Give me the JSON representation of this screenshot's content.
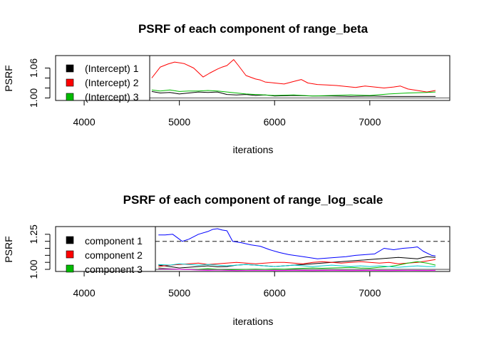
{
  "chart_data": [
    {
      "type": "line",
      "title": "PSRF of each component of range_beta",
      "xlabel": "iterations",
      "ylabel": "PSRF",
      "xlim": [
        3700,
        7840
      ],
      "ylim": [
        0.995,
        1.085
      ],
      "xticks": [
        4000,
        5000,
        6000,
        7000
      ],
      "yticks": [
        1.0,
        1.02,
        1.04,
        1.06
      ],
      "ytick_labels": [
        "1.00",
        "",
        "",
        "1.06"
      ],
      "hline": {
        "y": 1.0,
        "style": "solid",
        "color": "#555555"
      },
      "legend": {
        "position": "top-left",
        "entries": [
          "(Intercept) 1",
          "(Intercept) 2",
          "(Intercept) 3"
        ]
      },
      "series": [
        {
          "name": "(Intercept) 1",
          "color": "#000000",
          "x": [
            4710,
            4800,
            4900,
            5000,
            5100,
            5200,
            5300,
            5400,
            5500,
            5600,
            5700,
            5800,
            5900,
            6000,
            6200,
            6400,
            6600,
            6800,
            7000,
            7200,
            7400,
            7690
          ],
          "y": [
            1.013,
            1.01,
            1.011,
            1.008,
            1.01,
            1.012,
            1.011,
            1.012,
            1.007,
            1.006,
            1.007,
            1.005,
            1.006,
            1.004,
            1.005,
            1.004,
            1.004,
            1.003,
            1.004,
            1.003,
            1.003,
            1.003
          ]
        },
        {
          "name": "(Intercept) 2",
          "color": "#ff0000",
          "x": [
            4710,
            4800,
            4880,
            4950,
            5050,
            5150,
            5250,
            5320,
            5400,
            5450,
            5500,
            5570,
            5620,
            5700,
            5800,
            5850,
            5900,
            6000,
            6100,
            6200,
            6280,
            6350,
            6450,
            6550,
            6650,
            6750,
            6850,
            6950,
            7050,
            7150,
            7250,
            7320,
            7400,
            7500,
            7600,
            7690
          ],
          "y": [
            1.04,
            1.062,
            1.068,
            1.072,
            1.069,
            1.06,
            1.042,
            1.05,
            1.058,
            1.062,
            1.065,
            1.077,
            1.065,
            1.045,
            1.038,
            1.036,
            1.032,
            1.03,
            1.028,
            1.033,
            1.037,
            1.03,
            1.027,
            1.026,
            1.025,
            1.023,
            1.021,
            1.024,
            1.022,
            1.02,
            1.022,
            1.024,
            1.018,
            1.015,
            1.012,
            1.015
          ]
        },
        {
          "name": "(Intercept) 3",
          "color": "#00bb00",
          "x": [
            4710,
            4800,
            4900,
            5000,
            5100,
            5200,
            5300,
            5400,
            5500,
            5600,
            5700,
            5800,
            5900,
            6000,
            6200,
            6400,
            6600,
            6800,
            7000,
            7200,
            7400,
            7600,
            7690
          ],
          "y": [
            1.016,
            1.014,
            1.016,
            1.013,
            1.014,
            1.014,
            1.015,
            1.014,
            1.012,
            1.01,
            1.008,
            1.007,
            1.006,
            1.005,
            1.006,
            1.004,
            1.005,
            1.006,
            1.005,
            1.008,
            1.01,
            1.011,
            1.012
          ]
        }
      ]
    },
    {
      "type": "line",
      "title": "PSRF of each component of range_log_scale",
      "xlabel": "iterations",
      "ylabel": "PSRF",
      "xlim": [
        3700,
        7840
      ],
      "ylim": [
        0.985,
        1.305
      ],
      "xticks": [
        4000,
        5000,
        6000,
        7000
      ],
      "yticks": [
        1.0,
        1.05,
        1.1,
        1.15,
        1.2,
        1.25
      ],
      "ytick_labels": [
        "1.00",
        "",
        "",
        "",
        "",
        "1.25"
      ],
      "hline": {
        "y": 1.2,
        "style": "dashed",
        "color": "#555555"
      },
      "hline_base": {
        "y": 1.0,
        "style": "solid",
        "color": "#555555"
      },
      "legend": {
        "position": "top-left",
        "entries": [
          "component 1",
          "component 2",
          "component 3"
        ]
      },
      "series": [
        {
          "name": "component 1",
          "color": "#000000",
          "x": [
            4780,
            4900,
            5000,
            5100,
            5200,
            5300,
            5400,
            5500,
            5600,
            5700,
            5800,
            5900,
            6000,
            6100,
            6200,
            6300,
            6400,
            6500,
            6600,
            6700,
            6800,
            6900,
            7000,
            7100,
            7200,
            7300,
            7400,
            7500,
            7600,
            7690
          ],
          "y": [
            1.03,
            1.02,
            1.01,
            1.015,
            1.02,
            1.025,
            1.018,
            1.02,
            1.03,
            1.035,
            1.03,
            1.025,
            1.02,
            1.025,
            1.03,
            1.035,
            1.04,
            1.045,
            1.05,
            1.055,
            1.06,
            1.065,
            1.07,
            1.075,
            1.08,
            1.085,
            1.08,
            1.075,
            1.09,
            1.085
          ]
        },
        {
          "name": "component 2",
          "color": "#ff0000",
          "x": [
            4780,
            4900,
            5000,
            5100,
            5200,
            5300,
            5400,
            5500,
            5600,
            5700,
            5800,
            5900,
            6000,
            6100,
            6200,
            6300,
            6400,
            6500,
            6600,
            6700,
            6800,
            6900,
            7000,
            7100,
            7200,
            7300,
            7400,
            7500,
            7600,
            7690
          ],
          "y": [
            1.02,
            1.03,
            1.035,
            1.04,
            1.045,
            1.035,
            1.04,
            1.045,
            1.05,
            1.045,
            1.04,
            1.045,
            1.05,
            1.05,
            1.045,
            1.04,
            1.05,
            1.055,
            1.05,
            1.045,
            1.05,
            1.055,
            1.05,
            1.045,
            1.05,
            1.04,
            1.045,
            1.05,
            1.06,
            1.07
          ]
        },
        {
          "name": "component 3",
          "color": "#00bb00",
          "x": [
            4780,
            4900,
            5000,
            5100,
            5200,
            5300,
            5400,
            5500,
            5600,
            5700,
            5800,
            5900,
            6000,
            6100,
            6200,
            6300,
            6400,
            6500,
            6600,
            6700,
            6800,
            6900,
            7000,
            7100,
            7200,
            7300,
            7400,
            7500,
            7600,
            7690
          ],
          "y": [
            1.01,
            1.005,
            1.0,
            0.998,
            1.0,
            1.005,
            1.0,
            0.997,
            0.998,
            1.0,
            1.002,
            1.0,
            1.003,
            1.002,
            1.005,
            1.008,
            1.01,
            1.008,
            1.01,
            1.012,
            1.015,
            1.01,
            1.008,
            1.015,
            1.02,
            1.03,
            1.045,
            1.055,
            1.045,
            1.03
          ]
        },
        {
          "color": "#0000ff",
          "x": [
            4780,
            4850,
            4930,
            5000,
            5030,
            5100,
            5200,
            5300,
            5350,
            5400,
            5450,
            5500,
            5560,
            5650,
            5750,
            5850,
            5950,
            6050,
            6150,
            6250,
            6350,
            6450,
            6550,
            6650,
            6750,
            6850,
            6950,
            7050,
            7150,
            7250,
            7350,
            7450,
            7500,
            7560,
            7650,
            7690
          ],
          "y": [
            1.245,
            1.245,
            1.25,
            1.215,
            1.2,
            1.215,
            1.25,
            1.27,
            1.285,
            1.29,
            1.28,
            1.275,
            1.2,
            1.19,
            1.175,
            1.165,
            1.14,
            1.12,
            1.105,
            1.095,
            1.085,
            1.075,
            1.08,
            1.085,
            1.09,
            1.1,
            1.105,
            1.11,
            1.15,
            1.14,
            1.15,
            1.155,
            1.16,
            1.13,
            1.1,
            1.095
          ]
        },
        {
          "color": "#00cccc",
          "x": [
            4780,
            4900,
            5000,
            5100,
            5200,
            5300,
            5400,
            5500,
            5600,
            5700,
            5800,
            5900,
            6000,
            6100,
            6200,
            6300,
            6400,
            6500,
            6600,
            6700,
            6800,
            6900,
            7000,
            7100,
            7200,
            7300,
            7400,
            7500,
            7600,
            7690
          ],
          "y": [
            1.035,
            1.03,
            1.04,
            1.035,
            1.03,
            1.035,
            1.03,
            1.025,
            1.03,
            1.035,
            1.03,
            1.025,
            1.02,
            1.025,
            1.03,
            1.025,
            1.02,
            1.025,
            1.03,
            1.025,
            1.02,
            1.025,
            1.02,
            1.025,
            1.02,
            1.015,
            1.02,
            1.025,
            1.02,
            1.02
          ]
        },
        {
          "color": "#ff00ff",
          "x": [
            4780,
            4900,
            5000,
            5100,
            5200,
            5300,
            5400,
            5500,
            5600,
            5700,
            5800,
            5900,
            6000,
            6200,
            6400,
            6600,
            6800,
            7000,
            7200,
            7400,
            7600,
            7690
          ],
          "y": [
            1.005,
            1.003,
            1.0,
            0.998,
            0.995,
            0.993,
            0.995,
            0.993,
            0.992,
            0.993,
            0.994,
            0.993,
            0.992,
            0.993,
            0.992,
            0.993,
            0.992,
            0.993,
            0.992,
            0.993,
            0.992,
            0.993
          ]
        }
      ]
    }
  ]
}
